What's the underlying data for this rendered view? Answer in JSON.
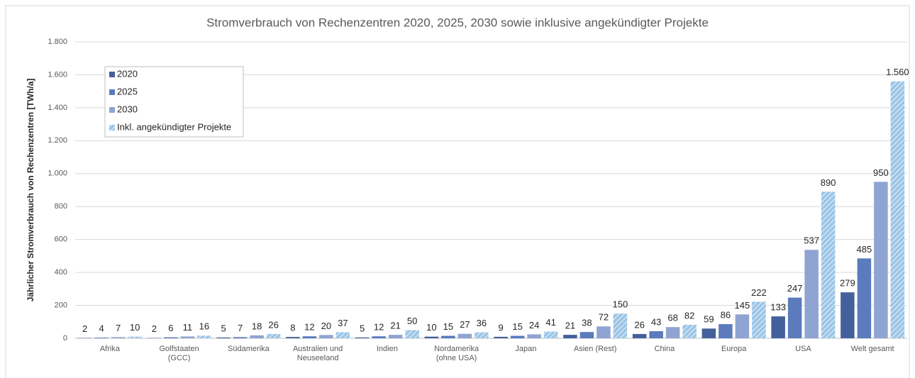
{
  "chart_data": {
    "type": "bar",
    "title": "Stromverbrauch von Rechenzentren 2020, 2025, 2030 sowie inklusive angekündigter Projekte",
    "ylabel": "Jährlicher Stromverbrauch von Rechenzentren [TWh/a]",
    "categories": [
      "Afrika",
      "Golfstaaten (GCC)",
      "Südamerika",
      "Australien und Neuseeland",
      "Indien",
      "Nordamerika (ohne USA)",
      "Japan",
      "Asien (Rest)",
      "China",
      "Europa",
      "USA",
      "Welt gesamt"
    ],
    "series": [
      {
        "name": "2020",
        "color": "#44609c",
        "values": [
          2,
          2,
          5,
          8,
          5,
          10,
          9,
          21,
          26,
          59,
          133,
          279
        ]
      },
      {
        "name": "2025",
        "color": "#5b7bbd",
        "values": [
          4,
          6,
          7,
          12,
          12,
          15,
          15,
          38,
          43,
          86,
          247,
          485
        ]
      },
      {
        "name": "2030",
        "color": "#8fa4d2",
        "values": [
          7,
          11,
          18,
          20,
          21,
          27,
          24,
          72,
          68,
          145,
          537,
          950
        ]
      },
      {
        "name": "Inkl. angekündigter Projekte",
        "color": "#9cc5e6",
        "pattern": "hatch",
        "values": [
          10,
          16,
          26,
          37,
          50,
          36,
          41,
          150,
          82,
          222,
          890,
          1560
        ],
        "value_labels": [
          "10",
          "16",
          "26",
          "37",
          "50",
          "36",
          "41",
          "150",
          "82",
          "222",
          "890",
          "1.560"
        ]
      }
    ],
    "ylim": [
      0,
      1800
    ],
    "yticks": [
      0,
      200,
      400,
      600,
      800,
      {
        "value": 1000,
        "label": "1.000"
      },
      {
        "value": 1200,
        "label": "1.200"
      },
      {
        "value": 1400,
        "label": "1.400"
      },
      {
        "value": 1600,
        "label": "1.600"
      },
      {
        "value": 1800,
        "label": "1.800"
      }
    ],
    "grid": true,
    "legend": "upper left"
  }
}
